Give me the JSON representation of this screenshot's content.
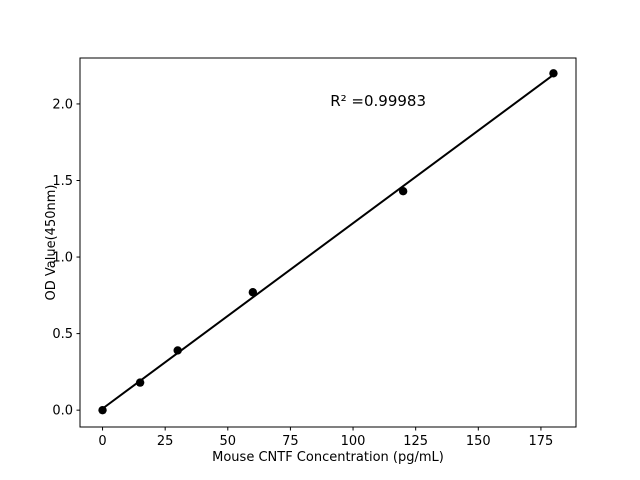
{
  "chart_data": {
    "type": "scatter",
    "title": "",
    "xlabel": "Mouse CNTF Concentration (pg/mL)",
    "ylabel": "OD Value(450nm)",
    "annotation": {
      "text": "R² =0.99983",
      "x": 110,
      "y": 2.02
    },
    "r_squared": 0.99983,
    "x": [
      0,
      15,
      30,
      60,
      120,
      180
    ],
    "y": [
      0.0,
      0.18,
      0.39,
      0.77,
      1.43,
      2.2
    ],
    "series": [
      {
        "name": "standard-points",
        "type": "scatter",
        "marker": "circle"
      },
      {
        "name": "linear-fit",
        "type": "line"
      }
    ],
    "trendline": {
      "x1": 0,
      "y1": 0.01,
      "x2": 180,
      "y2": 2.19
    },
    "xticks": [
      0,
      25,
      50,
      75,
      100,
      125,
      150,
      175
    ],
    "ytick_labels": [
      "0.0",
      "0.5",
      "1.0",
      "1.5",
      "2.0"
    ],
    "yticks": [
      0.0,
      0.5,
      1.0,
      1.5,
      2.0
    ],
    "xlim": [
      -9,
      189
    ],
    "ylim": [
      -0.11,
      2.3
    ],
    "grid": false,
    "legend": null,
    "marker_color": "#000000",
    "line_color": "#000000",
    "axis_color": "#000000",
    "background": "#ffffff"
  }
}
